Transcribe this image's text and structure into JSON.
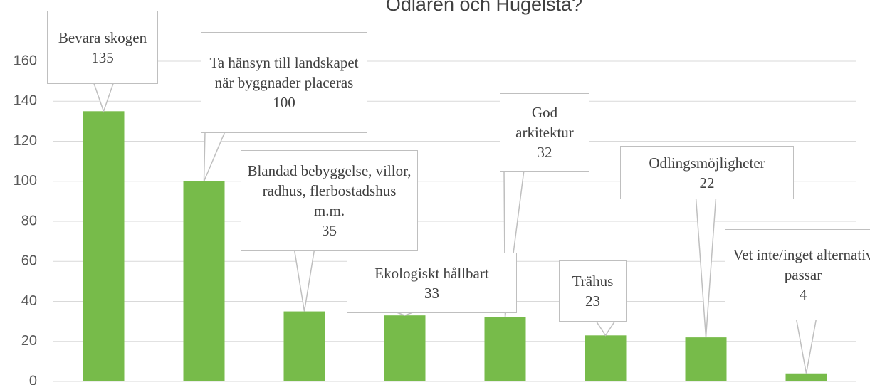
{
  "chart_data": {
    "type": "bar",
    "title": "Odlaren och Hugelsta?",
    "categories": [
      "Bevara skogen",
      "Ta hänsyn till landskapet när byggnader placeras",
      "Blandad bebyggelse, villor, radhus, flerbostadshus m.m.",
      "Ekologiskt hållbart",
      "God arkitektur",
      "Trähus",
      "Odlingsmöjligheter",
      "Vet inte/inget alternativ passar"
    ],
    "values": [
      135,
      100,
      35,
      33,
      32,
      23,
      22,
      4
    ],
    "color": "#77bb4a",
    "ylim": [
      0,
      160
    ],
    "yticks": [
      0,
      20,
      40,
      60,
      80,
      100,
      120,
      140,
      160
    ],
    "grid": true
  }
}
